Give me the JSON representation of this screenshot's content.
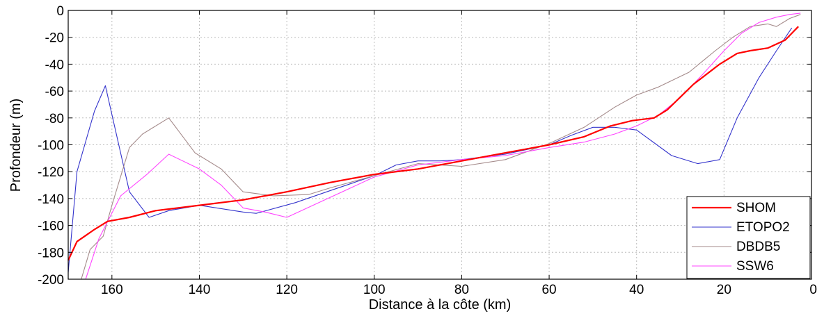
{
  "chart_data": {
    "type": "line",
    "title": "",
    "xlabel": "Distance à la côte (km)",
    "ylabel": "Profondeur (m)",
    "xlim": [
      170,
      0
    ],
    "ylim": [
      -200,
      0
    ],
    "x_reversed": true,
    "xticks": [
      160,
      140,
      120,
      100,
      80,
      60,
      40,
      20,
      0
    ],
    "xtick_labels": [
      "160",
      "140",
      "120",
      "100",
      "80",
      "60",
      "40",
      "20",
      "0"
    ],
    "yticks": [
      0,
      -20,
      -40,
      -60,
      -80,
      -100,
      -120,
      -140,
      -160,
      -180,
      -200
    ],
    "ytick_labels": [
      "0",
      "-20",
      "-40",
      "-60",
      "-80",
      "-100",
      "-120",
      "-140",
      "-160",
      "-180",
      "-200"
    ],
    "grid": true,
    "legend_position": "bottom-right",
    "series": [
      {
        "name": "SHOM",
        "color": "#ff0000",
        "width": 2.2,
        "x": [
          170,
          168,
          164,
          161,
          156,
          150,
          140,
          130,
          120,
          110,
          100,
          90,
          80,
          70,
          60,
          52,
          46,
          41,
          36,
          33,
          27,
          21,
          17,
          14,
          10,
          6,
          3
        ],
        "y": [
          -186,
          -172,
          -163,
          -157,
          -154,
          -149,
          -145,
          -141,
          -135,
          -128,
          -122,
          -118,
          -112,
          -106,
          -100,
          -94,
          -86,
          -82,
          -80,
          -74,
          -55,
          -40,
          -32,
          -30,
          -28,
          -22,
          -12
        ]
      },
      {
        "name": "ETOPO2",
        "color": "#3333cc",
        "width": 1.1,
        "x": [
          170,
          168,
          164,
          161.5,
          156,
          151.5,
          147,
          140,
          130,
          127,
          118,
          110,
          100,
          95,
          90,
          85,
          80,
          70,
          60,
          55,
          50,
          45,
          40,
          32,
          26,
          21,
          17,
          12,
          8,
          4.5
        ],
        "y": [
          -195,
          -120,
          -75,
          -56,
          -135,
          -154,
          -149,
          -145,
          -150,
          -151,
          -143,
          -134,
          -123,
          -115,
          -112,
          -112,
          -111,
          -107,
          -100,
          -93,
          -87,
          -87,
          -89,
          -108,
          -114,
          -111,
          -80,
          -50,
          -30,
          -13
        ]
      },
      {
        "name": "DBDB5",
        "color": "#a48a8a",
        "width": 1.1,
        "x": [
          167,
          165,
          162,
          160,
          156,
          153,
          147,
          141,
          135,
          130,
          123,
          115,
          110,
          100,
          90,
          80,
          70,
          60,
          52,
          45,
          40,
          35,
          28,
          22,
          18,
          14,
          10,
          8,
          5,
          2.5
        ],
        "y": [
          -200,
          -178,
          -168,
          -145,
          -102,
          -92,
          -80,
          -106,
          -118,
          -135,
          -138,
          -137,
          -132,
          -123,
          -114,
          -116,
          -111,
          -99,
          -87,
          -72,
          -63,
          -57,
          -46,
          -30,
          -20,
          -12,
          -10,
          -12,
          -6,
          -3
        ]
      },
      {
        "name": "SSW6",
        "color": "#ff44ff",
        "width": 1.1,
        "x": [
          166,
          163,
          158,
          152,
          147,
          140,
          135,
          130,
          125,
          120,
          112,
          100,
          90,
          80,
          70,
          60,
          52,
          45,
          40,
          35,
          30,
          25,
          20,
          16,
          12,
          8,
          5,
          2.5
        ],
        "y": [
          -200,
          -170,
          -138,
          -122,
          -107,
          -118,
          -130,
          -147,
          -150,
          -154,
          -142,
          -124,
          -115,
          -111,
          -108,
          -102,
          -98,
          -92,
          -86,
          -78,
          -65,
          -48,
          -30,
          -17,
          -9,
          -5,
          -3,
          -2
        ]
      }
    ]
  }
}
